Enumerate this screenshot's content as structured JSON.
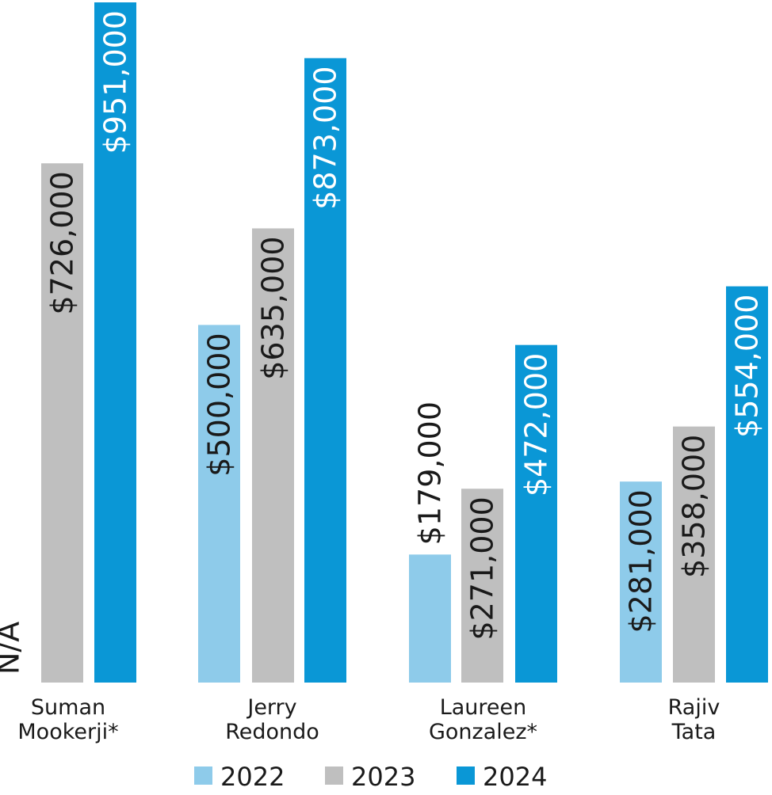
{
  "chart_data": {
    "type": "bar",
    "title": "",
    "xlabel": "",
    "ylabel": "",
    "ylim": [
      0,
      951000
    ],
    "grid": false,
    "legend_placement": "bottom-center",
    "categories": [
      [
        "Suman",
        "Mookerji*"
      ],
      [
        "Jerry",
        "Redondo"
      ],
      [
        "Laureen",
        "Gonzalez*"
      ],
      [
        "Rajiv",
        "Tata"
      ]
    ],
    "series": [
      {
        "name": "2022",
        "color": "#8ecbea",
        "values": [
          null,
          500000,
          179000,
          281000
        ],
        "labels": [
          "N/A",
          "$500,000",
          "$179,000",
          "$281,000"
        ]
      },
      {
        "name": "2023",
        "color": "#bfbfbf",
        "values": [
          726000,
          635000,
          271000,
          358000
        ],
        "labels": [
          "$726,000",
          "$635,000",
          "$271,000",
          "$358,000"
        ]
      },
      {
        "name": "2024",
        "color": "#0a97d6",
        "values": [
          951000,
          873000,
          472000,
          554000
        ],
        "labels": [
          "$951,000",
          "$873,000",
          "$472,000",
          "$554,000"
        ]
      }
    ]
  }
}
